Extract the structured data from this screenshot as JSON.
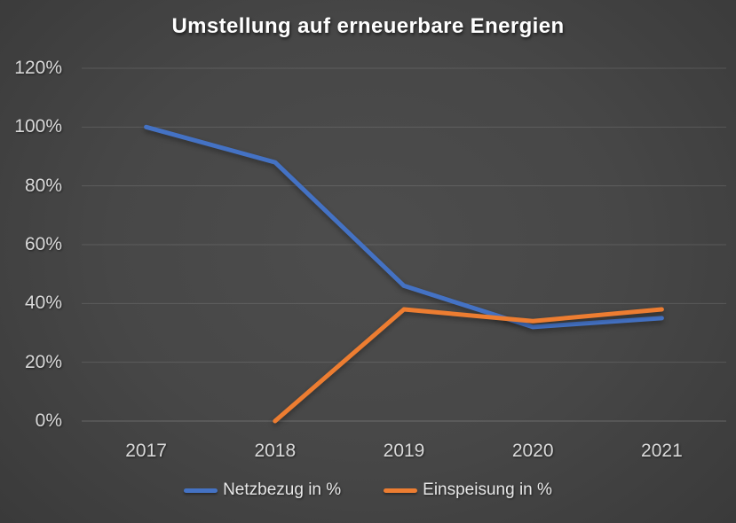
{
  "chart_data": {
    "type": "line",
    "title": "Umstellung auf erneuerbare Energien",
    "categories": [
      "2017",
      "2018",
      "2019",
      "2020",
      "2021"
    ],
    "series": [
      {
        "name": "Netzbezug in %",
        "key": "netzbezug",
        "color": "#4472C4",
        "values": [
          100,
          88,
          46,
          32,
          35
        ]
      },
      {
        "name": "Einspeisung in %",
        "key": "einspeisung",
        "color": "#ED7D31",
        "values": [
          null,
          0,
          38,
          34,
          38
        ]
      }
    ],
    "ylim": [
      0,
      120
    ],
    "y_tick_step": 20,
    "y_ticks": [
      "0%",
      "20%",
      "40%",
      "60%",
      "80%",
      "100%",
      "120%"
    ],
    "grid": true,
    "legend_position": "bottom"
  },
  "colors": {
    "background_center": "#4d4d4d",
    "background_edge": "#242424",
    "gridline": "#5e5e5e",
    "tick_text": "#d9d9d9",
    "title_text": "#ffffff",
    "series_blue": "#4472C4",
    "series_orange": "#ED7D31"
  }
}
